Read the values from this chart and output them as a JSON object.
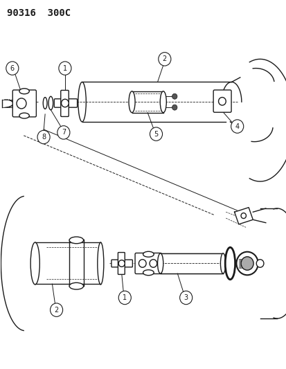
{
  "title": "90316  300C",
  "bg_color": "#ffffff",
  "line_color": "#1a1a1a",
  "title_fontsize": 10,
  "fig_width": 4.14,
  "fig_height": 5.33,
  "dpi": 100
}
